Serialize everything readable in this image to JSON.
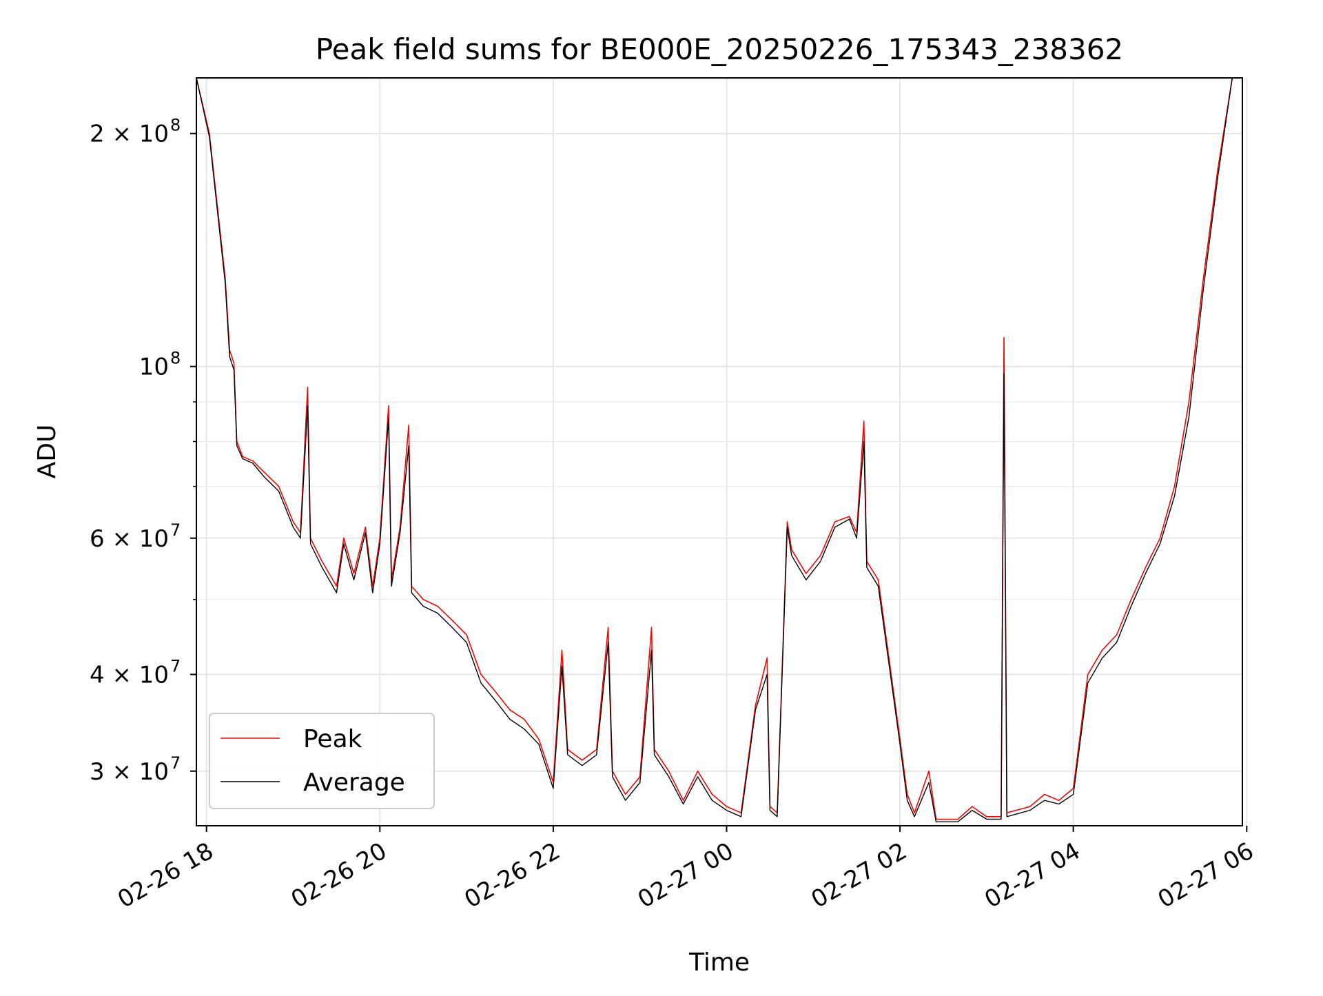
{
  "chart_data": {
    "type": "line",
    "title": "Peak field sums for BE000E_20250226_175343_238362",
    "xlabel": "Time",
    "ylabel": "ADU",
    "yscale": "log",
    "grid": true,
    "legend_location": "lower-left",
    "xlim": [
      "2025-02-26 17:53",
      "2025-02-27 05:57"
    ],
    "ylim": [
      25500000,
      236000000
    ],
    "x_ticks": [
      {
        "value": "2025-02-26 18:00",
        "label": "02-26 18"
      },
      {
        "value": "2025-02-26 20:00",
        "label": "02-26 20"
      },
      {
        "value": "2025-02-26 22:00",
        "label": "02-26 22"
      },
      {
        "value": "2025-02-27 00:00",
        "label": "02-27 00"
      },
      {
        "value": "2025-02-27 02:00",
        "label": "02-27 02"
      },
      {
        "value": "2025-02-27 04:00",
        "label": "02-27 04"
      },
      {
        "value": "2025-02-27 06:00",
        "label": "02-27 06"
      }
    ],
    "y_ticks": [
      {
        "value": 30000000,
        "label": "3 × 10",
        "exp": "7"
      },
      {
        "value": 40000000,
        "label": "4 × 10",
        "exp": "7"
      },
      {
        "value": 60000000,
        "label": "6 × 10",
        "exp": "7"
      },
      {
        "value": 100000000,
        "label": "10",
        "exp": "8"
      },
      {
        "value": 200000000,
        "label": "2 × 10",
        "exp": "8"
      }
    ],
    "y_minor_ticks": [
      50000000,
      70000000,
      80000000,
      90000000
    ],
    "series": [
      {
        "name": "Peak",
        "color": "#ff0000",
        "points": [
          [
            "2025-02-26 17:53",
            236000000
          ],
          [
            "2025-02-26 18:02",
            200000000
          ],
          [
            "2025-02-26 18:13",
            130000000
          ],
          [
            "2025-02-26 18:16",
            105000000
          ],
          [
            "2025-02-26 18:19",
            101000000
          ],
          [
            "2025-02-26 18:21",
            80000000
          ],
          [
            "2025-02-26 18:25",
            76500000
          ],
          [
            "2025-02-26 18:32",
            75500000
          ],
          [
            "2025-02-26 18:40",
            73000000
          ],
          [
            "2025-02-26 18:50",
            70000000
          ],
          [
            "2025-02-26 19:00",
            63000000
          ],
          [
            "2025-02-26 19:05",
            61000000
          ],
          [
            "2025-02-26 19:10",
            94000000
          ],
          [
            "2025-02-26 19:12",
            60000000
          ],
          [
            "2025-02-26 19:20",
            56000000
          ],
          [
            "2025-02-26 19:30",
            52000000
          ],
          [
            "2025-02-26 19:35",
            60000000
          ],
          [
            "2025-02-26 19:42",
            54000000
          ],
          [
            "2025-02-26 19:50",
            62000000
          ],
          [
            "2025-02-26 19:55",
            52000000
          ],
          [
            "2025-02-26 20:00",
            60000000
          ],
          [
            "2025-02-26 20:06",
            89000000
          ],
          [
            "2025-02-26 20:08",
            53000000
          ],
          [
            "2025-02-26 20:14",
            62000000
          ],
          [
            "2025-02-26 20:20",
            84000000
          ],
          [
            "2025-02-26 20:22",
            52000000
          ],
          [
            "2025-02-26 20:30",
            50000000
          ],
          [
            "2025-02-26 20:40",
            49000000
          ],
          [
            "2025-02-26 20:50",
            47000000
          ],
          [
            "2025-02-26 21:00",
            45000000
          ],
          [
            "2025-02-26 21:10",
            40000000
          ],
          [
            "2025-02-26 21:20",
            38000000
          ],
          [
            "2025-02-26 21:30",
            36000000
          ],
          [
            "2025-02-26 21:40",
            35000000
          ],
          [
            "2025-02-26 21:50",
            33000000
          ],
          [
            "2025-02-26 22:00",
            29000000
          ],
          [
            "2025-02-26 22:06",
            43000000
          ],
          [
            "2025-02-26 22:10",
            32000000
          ],
          [
            "2025-02-26 22:20",
            31000000
          ],
          [
            "2025-02-26 22:30",
            32000000
          ],
          [
            "2025-02-26 22:38",
            46000000
          ],
          [
            "2025-02-26 22:41",
            30000000
          ],
          [
            "2025-02-26 22:50",
            28000000
          ],
          [
            "2025-02-26 23:00",
            29500000
          ],
          [
            "2025-02-26 23:08",
            46000000
          ],
          [
            "2025-02-26 23:10",
            32000000
          ],
          [
            "2025-02-26 23:20",
            30000000
          ],
          [
            "2025-02-26 23:30",
            27500000
          ],
          [
            "2025-02-26 23:40",
            30000000
          ],
          [
            "2025-02-26 23:50",
            28000000
          ],
          [
            "2025-02-27 00:00",
            27000000
          ],
          [
            "2025-02-27 00:10",
            26500000
          ],
          [
            "2025-02-27 00:20",
            36500000
          ],
          [
            "2025-02-27 00:28",
            42000000
          ],
          [
            "2025-02-27 00:30",
            27000000
          ],
          [
            "2025-02-27 00:35",
            26500000
          ],
          [
            "2025-02-27 00:42",
            63000000
          ],
          [
            "2025-02-27 00:45",
            58000000
          ],
          [
            "2025-02-27 00:55",
            54000000
          ],
          [
            "2025-02-27 01:05",
            57000000
          ],
          [
            "2025-02-27 01:15",
            63000000
          ],
          [
            "2025-02-27 01:25",
            64000000
          ],
          [
            "2025-02-27 01:30",
            61000000
          ],
          [
            "2025-02-27 01:35",
            85000000
          ],
          [
            "2025-02-27 01:37",
            56000000
          ],
          [
            "2025-02-27 01:45",
            53000000
          ],
          [
            "2025-02-27 02:00",
            33000000
          ],
          [
            "2025-02-27 02:05",
            28000000
          ],
          [
            "2025-02-27 02:10",
            26500000
          ],
          [
            "2025-02-27 02:20",
            30000000
          ],
          [
            "2025-02-27 02:25",
            26000000
          ],
          [
            "2025-02-27 02:40",
            26000000
          ],
          [
            "2025-02-27 02:50",
            27000000
          ],
          [
            "2025-02-27 03:00",
            26200000
          ],
          [
            "2025-02-27 03:10",
            26200000
          ],
          [
            "2025-02-27 03:12",
            109000000
          ],
          [
            "2025-02-27 03:14",
            26500000
          ],
          [
            "2025-02-27 03:30",
            27000000
          ],
          [
            "2025-02-27 03:40",
            28000000
          ],
          [
            "2025-02-27 03:50",
            27500000
          ],
          [
            "2025-02-27 04:00",
            28500000
          ],
          [
            "2025-02-27 04:10",
            40000000
          ],
          [
            "2025-02-27 04:20",
            43000000
          ],
          [
            "2025-02-27 04:30",
            45000000
          ],
          [
            "2025-02-27 04:40",
            50000000
          ],
          [
            "2025-02-27 04:50",
            55000000
          ],
          [
            "2025-02-27 05:00",
            60000000
          ],
          [
            "2025-02-27 05:10",
            70000000
          ],
          [
            "2025-02-27 05:20",
            90000000
          ],
          [
            "2025-02-27 05:30",
            130000000
          ],
          [
            "2025-02-27 05:40",
            180000000
          ],
          [
            "2025-02-27 05:50",
            236000000
          ]
        ]
      },
      {
        "name": "Average",
        "color": "#000000",
        "points": [
          [
            "2025-02-26 17:53",
            236000000
          ],
          [
            "2025-02-26 18:02",
            198000000
          ],
          [
            "2025-02-26 18:13",
            128000000
          ],
          [
            "2025-02-26 18:16",
            103000000
          ],
          [
            "2025-02-26 18:19",
            99000000
          ],
          [
            "2025-02-26 18:21",
            79000000
          ],
          [
            "2025-02-26 18:25",
            76000000
          ],
          [
            "2025-02-26 18:32",
            75000000
          ],
          [
            "2025-02-26 18:40",
            72000000
          ],
          [
            "2025-02-26 18:50",
            69000000
          ],
          [
            "2025-02-26 19:00",
            62000000
          ],
          [
            "2025-02-26 19:05",
            60000000
          ],
          [
            "2025-02-26 19:10",
            89000000
          ],
          [
            "2025-02-26 19:12",
            59000000
          ],
          [
            "2025-02-26 19:20",
            55000000
          ],
          [
            "2025-02-26 19:30",
            51000000
          ],
          [
            "2025-02-26 19:35",
            59000000
          ],
          [
            "2025-02-26 19:42",
            53000000
          ],
          [
            "2025-02-26 19:50",
            61000000
          ],
          [
            "2025-02-26 19:55",
            51000000
          ],
          [
            "2025-02-26 20:00",
            59000000
          ],
          [
            "2025-02-26 20:06",
            86000000
          ],
          [
            "2025-02-26 20:08",
            52000000
          ],
          [
            "2025-02-26 20:14",
            61000000
          ],
          [
            "2025-02-26 20:20",
            79000000
          ],
          [
            "2025-02-26 20:22",
            51000000
          ],
          [
            "2025-02-26 20:30",
            49000000
          ],
          [
            "2025-02-26 20:40",
            48000000
          ],
          [
            "2025-02-26 20:50",
            46000000
          ],
          [
            "2025-02-26 21:00",
            44000000
          ],
          [
            "2025-02-26 21:10",
            39000000
          ],
          [
            "2025-02-26 21:20",
            37000000
          ],
          [
            "2025-02-26 21:30",
            35000000
          ],
          [
            "2025-02-26 21:40",
            34000000
          ],
          [
            "2025-02-26 21:50",
            32500000
          ],
          [
            "2025-02-26 22:00",
            28500000
          ],
          [
            "2025-02-26 22:06",
            41000000
          ],
          [
            "2025-02-26 22:10",
            31500000
          ],
          [
            "2025-02-26 22:20",
            30500000
          ],
          [
            "2025-02-26 22:30",
            31500000
          ],
          [
            "2025-02-26 22:38",
            44000000
          ],
          [
            "2025-02-26 22:41",
            29500000
          ],
          [
            "2025-02-26 22:50",
            27500000
          ],
          [
            "2025-02-26 23:00",
            29000000
          ],
          [
            "2025-02-26 23:08",
            43000000
          ],
          [
            "2025-02-26 23:10",
            31500000
          ],
          [
            "2025-02-26 23:20",
            29500000
          ],
          [
            "2025-02-26 23:30",
            27200000
          ],
          [
            "2025-02-26 23:40",
            29500000
          ],
          [
            "2025-02-26 23:50",
            27500000
          ],
          [
            "2025-02-27 00:00",
            26700000
          ],
          [
            "2025-02-27 00:10",
            26200000
          ],
          [
            "2025-02-27 00:20",
            36000000
          ],
          [
            "2025-02-27 00:28",
            40000000
          ],
          [
            "2025-02-27 00:30",
            26700000
          ],
          [
            "2025-02-27 00:35",
            26200000
          ],
          [
            "2025-02-27 00:42",
            62000000
          ],
          [
            "2025-02-27 00:45",
            57000000
          ],
          [
            "2025-02-27 00:55",
            53000000
          ],
          [
            "2025-02-27 01:05",
            56000000
          ],
          [
            "2025-02-27 01:15",
            62000000
          ],
          [
            "2025-02-27 01:25",
            63500000
          ],
          [
            "2025-02-27 01:30",
            60000000
          ],
          [
            "2025-02-27 01:35",
            80000000
          ],
          [
            "2025-02-27 01:37",
            55000000
          ],
          [
            "2025-02-27 01:45",
            52000000
          ],
          [
            "2025-02-27 02:00",
            32500000
          ],
          [
            "2025-02-27 02:05",
            27500000
          ],
          [
            "2025-02-27 02:10",
            26200000
          ],
          [
            "2025-02-27 02:20",
            29000000
          ],
          [
            "2025-02-27 02:25",
            25800000
          ],
          [
            "2025-02-27 02:40",
            25800000
          ],
          [
            "2025-02-27 02:50",
            26700000
          ],
          [
            "2025-02-27 03:00",
            26000000
          ],
          [
            "2025-02-27 03:10",
            26000000
          ],
          [
            "2025-02-27 03:12",
            98000000
          ],
          [
            "2025-02-27 03:14",
            26200000
          ],
          [
            "2025-02-27 03:30",
            26700000
          ],
          [
            "2025-02-27 03:40",
            27500000
          ],
          [
            "2025-02-27 03:50",
            27200000
          ],
          [
            "2025-02-27 04:00",
            28000000
          ],
          [
            "2025-02-27 04:10",
            39000000
          ],
          [
            "2025-02-27 04:20",
            42000000
          ],
          [
            "2025-02-27 04:30",
            44000000
          ],
          [
            "2025-02-27 04:40",
            49000000
          ],
          [
            "2025-02-27 04:50",
            54000000
          ],
          [
            "2025-02-27 05:00",
            59000000
          ],
          [
            "2025-02-27 05:10",
            68000000
          ],
          [
            "2025-02-27 05:20",
            86000000
          ],
          [
            "2025-02-27 05:30",
            126000000
          ],
          [
            "2025-02-27 05:40",
            176000000
          ],
          [
            "2025-02-27 05:50",
            236000000
          ]
        ]
      }
    ],
    "legend": [
      {
        "label": "Peak",
        "color": "#ff0000"
      },
      {
        "label": "Average",
        "color": "#000000"
      }
    ]
  }
}
